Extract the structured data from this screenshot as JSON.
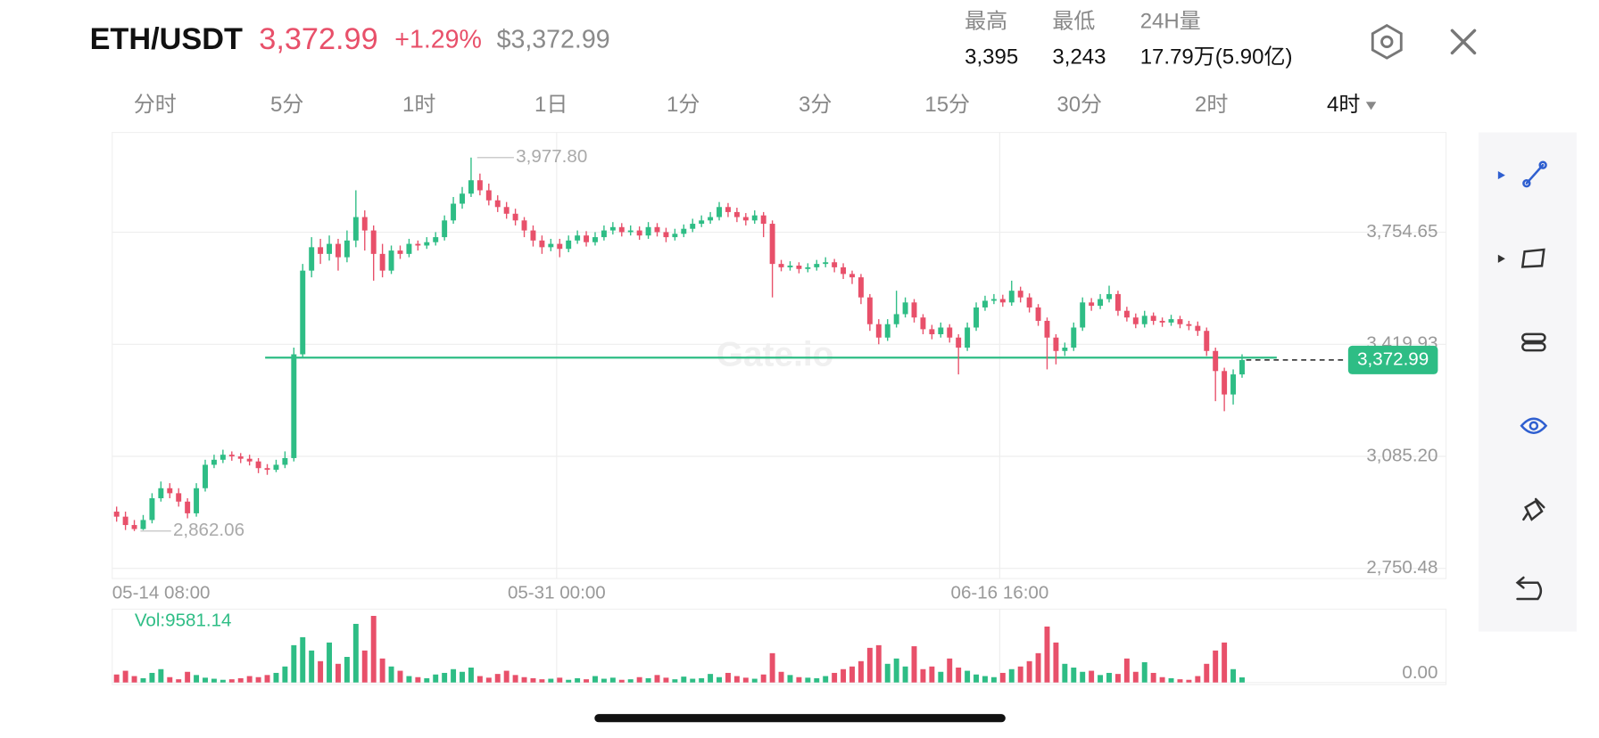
{
  "header": {
    "pair": "ETH/USDT",
    "price": "3,372.99",
    "change": "+1.29%",
    "usd_price": "$3,372.99",
    "stats": [
      {
        "label": "最高",
        "value": "3,395"
      },
      {
        "label": "最低",
        "value": "3,243"
      },
      {
        "label": "24H量",
        "value": "17.79万(5.90亿)"
      }
    ],
    "tabs": [
      "分时",
      "5分",
      "1时",
      "1日",
      "1分",
      "3分",
      "15分",
      "30分",
      "2时",
      "4时"
    ],
    "active_tab": 9
  },
  "watermark": "Gate.io",
  "chart_data": {
    "type": "candlestick",
    "up_color": "#2ebd85",
    "down_color": "#e8506a",
    "categories": [
      "05-14 08:00",
      null,
      null,
      null,
      null,
      null,
      null,
      null,
      null,
      null,
      null,
      null,
      null,
      null,
      null,
      null,
      null,
      null,
      null,
      null,
      null,
      null,
      null,
      null,
      null,
      null,
      null,
      null,
      null,
      null,
      null,
      null,
      null,
      null,
      null,
      null,
      null,
      null,
      null,
      null,
      null,
      null,
      null,
      null,
      null,
      null,
      null,
      null,
      null,
      null,
      "05-31 00:00",
      null,
      null,
      null,
      null,
      null,
      null,
      null,
      null,
      null,
      null,
      null,
      null,
      null,
      null,
      null,
      null,
      null,
      null,
      null,
      null,
      null,
      null,
      null,
      null,
      null,
      null,
      null,
      null,
      null,
      null,
      null,
      null,
      null,
      null,
      null,
      null,
      null,
      null,
      null,
      null,
      null,
      null,
      null,
      null,
      null,
      null,
      null,
      null,
      null,
      "06-16 16:00",
      null,
      null,
      null,
      null,
      null,
      null,
      null,
      null,
      null,
      null,
      null,
      null,
      null,
      null,
      null,
      null,
      null,
      null,
      null,
      null,
      null,
      null,
      null,
      null,
      null,
      null,
      null
    ],
    "open": [
      2920,
      2905,
      2880,
      2868,
      2895,
      2960,
      2990,
      2975,
      2950,
      2915,
      2990,
      3060,
      3075,
      3090,
      3085,
      3078,
      3070,
      3050,
      3045,
      3060,
      3080,
      3390,
      3640,
      3710,
      3690,
      3720,
      3680,
      3730,
      3800,
      3760,
      3690,
      3640,
      3700,
      3690,
      3720,
      3715,
      3725,
      3740,
      3790,
      3840,
      3870,
      3910,
      3880,
      3850,
      3830,
      3810,
      3790,
      3760,
      3730,
      3710,
      3720,
      3705,
      3730,
      3745,
      3725,
      3740,
      3760,
      3770,
      3755,
      3760,
      3745,
      3770,
      3755,
      3740,
      3750,
      3765,
      3780,
      3790,
      3800,
      3830,
      3815,
      3800,
      3790,
      3805,
      3780,
      3660,
      3650,
      3655,
      3645,
      3650,
      3660,
      3665,
      3650,
      3630,
      3620,
      3560,
      3480,
      3440,
      3480,
      3510,
      3545,
      3500,
      3465,
      3450,
      3470,
      3440,
      3410,
      3470,
      3530,
      3550,
      3555,
      3545,
      3580,
      3560,
      3530,
      3490,
      3440,
      3400,
      3410,
      3470,
      3545,
      3535,
      3555,
      3570,
      3520,
      3500,
      3480,
      3505,
      3490,
      3485,
      3495,
      3480,
      3475,
      3460,
      3400,
      3340,
      3270,
      3330
    ],
    "high": [
      2935,
      2920,
      2895,
      2910,
      2975,
      3010,
      3005,
      2990,
      2960,
      3005,
      3075,
      3090,
      3105,
      3100,
      3095,
      3090,
      3080,
      3062,
      3075,
      3100,
      3410,
      3660,
      3740,
      3735,
      3745,
      3735,
      3760,
      3880,
      3820,
      3775,
      3720,
      3715,
      3715,
      3735,
      3730,
      3740,
      3755,
      3805,
      3860,
      3890,
      3977.8,
      3930,
      3900,
      3865,
      3845,
      3825,
      3800,
      3775,
      3745,
      3735,
      3735,
      3745,
      3760,
      3758,
      3755,
      3775,
      3785,
      3782,
      3775,
      3772,
      3785,
      3782,
      3768,
      3765,
      3778,
      3795,
      3805,
      3815,
      3845,
      3842,
      3828,
      3812,
      3820,
      3815,
      3790,
      3672,
      3668,
      3665,
      3662,
      3672,
      3680,
      3675,
      3662,
      3640,
      3630,
      3570,
      3495,
      3495,
      3580,
      3560,
      3555,
      3510,
      3478,
      3485,
      3480,
      3450,
      3485,
      3545,
      3565,
      3570,
      3568,
      3610,
      3592,
      3572,
      3540,
      3500,
      3450,
      3425,
      3485,
      3560,
      3558,
      3570,
      3595,
      3580,
      3532,
      3512,
      3520,
      3515,
      3500,
      3508,
      3505,
      3490,
      3488,
      3470,
      3410,
      3350,
      3345,
      3390
    ],
    "low": [
      2890,
      2865,
      2862.06,
      2865,
      2885,
      2950,
      2960,
      2935,
      2900,
      2905,
      2980,
      3050,
      3065,
      3072,
      3065,
      3058,
      3035,
      3030,
      3038,
      3050,
      3070,
      3380,
      3620,
      3660,
      3670,
      3640,
      3665,
      3710,
      3700,
      3610,
      3620,
      3630,
      3675,
      3680,
      3700,
      3705,
      3715,
      3730,
      3780,
      3825,
      3860,
      3865,
      3835,
      3815,
      3795,
      3775,
      3740,
      3712,
      3690,
      3698,
      3680,
      3695,
      3720,
      3712,
      3715,
      3730,
      3748,
      3742,
      3745,
      3732,
      3735,
      3742,
      3725,
      3730,
      3740,
      3755,
      3770,
      3780,
      3790,
      3800,
      3785,
      3775,
      3780,
      3740,
      3560,
      3638,
      3640,
      3632,
      3635,
      3640,
      3650,
      3635,
      3615,
      3600,
      3540,
      3460,
      3420,
      3430,
      3470,
      3500,
      3485,
      3450,
      3435,
      3440,
      3425,
      3330,
      3400,
      3460,
      3520,
      3540,
      3532,
      3535,
      3545,
      3515,
      3475,
      3345,
      3360,
      3385,
      3400,
      3460,
      3520,
      3525,
      3545,
      3505,
      3488,
      3468,
      3470,
      3478,
      3472,
      3475,
      3468,
      3462,
      3445,
      3385,
      3250,
      3220,
      3240,
      3320
    ],
    "close": [
      2905,
      2880,
      2868,
      2895,
      2960,
      2990,
      2975,
      2950,
      2915,
      2990,
      3060,
      3075,
      3090,
      3085,
      3078,
      3070,
      3050,
      3045,
      3060,
      3080,
      3390,
      3640,
      3710,
      3690,
      3720,
      3680,
      3730,
      3800,
      3760,
      3690,
      3640,
      3700,
      3690,
      3720,
      3715,
      3725,
      3740,
      3790,
      3840,
      3870,
      3910,
      3880,
      3850,
      3830,
      3810,
      3790,
      3760,
      3730,
      3710,
      3720,
      3705,
      3730,
      3745,
      3725,
      3740,
      3760,
      3770,
      3755,
      3760,
      3745,
      3770,
      3755,
      3740,
      3750,
      3765,
      3780,
      3790,
      3800,
      3830,
      3815,
      3800,
      3790,
      3805,
      3780,
      3660,
      3650,
      3655,
      3645,
      3650,
      3660,
      3665,
      3650,
      3630,
      3620,
      3560,
      3480,
      3440,
      3480,
      3510,
      3545,
      3500,
      3465,
      3450,
      3470,
      3440,
      3410,
      3470,
      3530,
      3550,
      3555,
      3545,
      3580,
      3560,
      3530,
      3490,
      3440,
      3400,
      3410,
      3470,
      3545,
      3535,
      3555,
      3570,
      3520,
      3500,
      3480,
      3505,
      3490,
      3485,
      3495,
      3480,
      3475,
      3460,
      3400,
      3340,
      3270,
      3330,
      3372.99
    ],
    "volume": [
      15000,
      22000,
      12000,
      8000,
      18000,
      25000,
      10000,
      6000,
      20000,
      14000,
      9000,
      7000,
      5000,
      6000,
      8000,
      12000,
      10000,
      14000,
      18000,
      30000,
      70000,
      85000,
      60000,
      40000,
      75000,
      35000,
      48000,
      110000,
      60000,
      125000,
      45000,
      30000,
      22000,
      12000,
      10000,
      8000,
      15000,
      18000,
      25000,
      20000,
      28000,
      12000,
      9000,
      16000,
      22000,
      14000,
      10000,
      8000,
      6000,
      7000,
      9000,
      5000,
      8000,
      6000,
      12000,
      7000,
      9000,
      5000,
      6000,
      10000,
      8000,
      14000,
      9000,
      6000,
      11000,
      7000,
      8000,
      16000,
      10000,
      18000,
      12000,
      9000,
      7000,
      15000,
      55000,
      20000,
      14000,
      10000,
      9000,
      8000,
      12000,
      18000,
      25000,
      30000,
      40000,
      65000,
      70000,
      35000,
      45000,
      30000,
      68000,
      25000,
      30000,
      20000,
      45000,
      28000,
      22000,
      15000,
      12000,
      10000,
      18000,
      25000,
      30000,
      40000,
      55000,
      105000,
      75000,
      35000,
      28000,
      20000,
      22000,
      14000,
      18000,
      16000,
      45000,
      20000,
      38000,
      18000,
      10000,
      8000,
      6000,
      5000,
      12000,
      35000,
      60000,
      75000,
      25000,
      9581.14
    ],
    "volume_label": "Vol:9581.14",
    "ylim": [
      2720,
      4052.9
    ],
    "yticks": [
      {
        "value": 3754.65,
        "label": "3,754.65"
      },
      {
        "value": 3419.93,
        "label": "3,419.93"
      },
      {
        "value": 3085.2,
        "label": "3,085.20"
      },
      {
        "value": 2750.48,
        "label": "2,750.48"
      }
    ],
    "volume_ylim": [
      0,
      130000
    ],
    "volume_yticks": [
      {
        "value": 0,
        "label": "0.00"
      }
    ],
    "max_marker": {
      "value": 3977.8,
      "label": "3,977.80"
    },
    "min_marker": {
      "value": 2862.06,
      "label": "2,862.06"
    },
    "last_price": {
      "value": 3372.99,
      "label": "3,372.99"
    },
    "hline": 3380,
    "hline_color": "#2ebd85",
    "grid": true
  }
}
